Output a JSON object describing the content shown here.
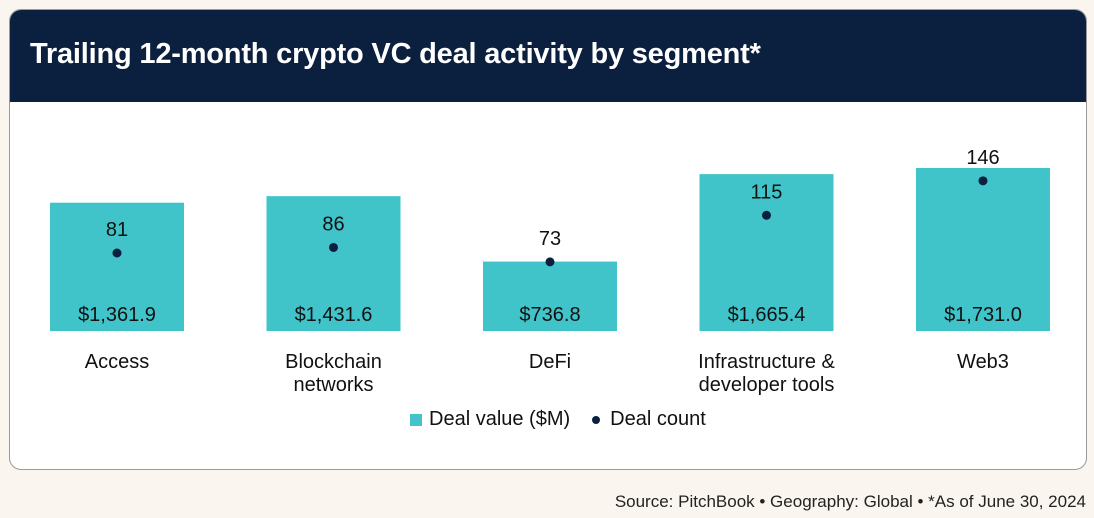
{
  "header": {
    "title": "Trailing 12-month crypto VC deal activity by segment*"
  },
  "legend": {
    "deal_value_label": "Deal value ($M)",
    "deal_count_label": "Deal count"
  },
  "source": "Source: PitchBook  •  Geography: Global  •  *As of June 30, 2024",
  "colors": {
    "bar": "#40c3c9",
    "dot": "#0b1f3f",
    "header": "#0b1f3f"
  },
  "chart_data": {
    "type": "bar",
    "categories": [
      [
        "Access"
      ],
      [
        "Blockchain",
        "networks"
      ],
      [
        "DeFi"
      ],
      [
        "Infrastructure &",
        "developer tools"
      ],
      [
        "Web3"
      ]
    ],
    "series": [
      {
        "name": "Deal value ($M)",
        "type": "bar",
        "values": [
          1361.9,
          1431.6,
          736.8,
          1665.4,
          1731.0
        ],
        "labels": [
          "$1,361.9",
          "$1,431.6",
          "$736.8",
          "$1,665.4",
          "$1,731.0"
        ]
      },
      {
        "name": "Deal count",
        "type": "scatter",
        "values": [
          81,
          86,
          73,
          115,
          146
        ],
        "labels": [
          "81",
          "86",
          "73",
          "115",
          "146"
        ]
      }
    ],
    "legend_position": "bottom"
  }
}
